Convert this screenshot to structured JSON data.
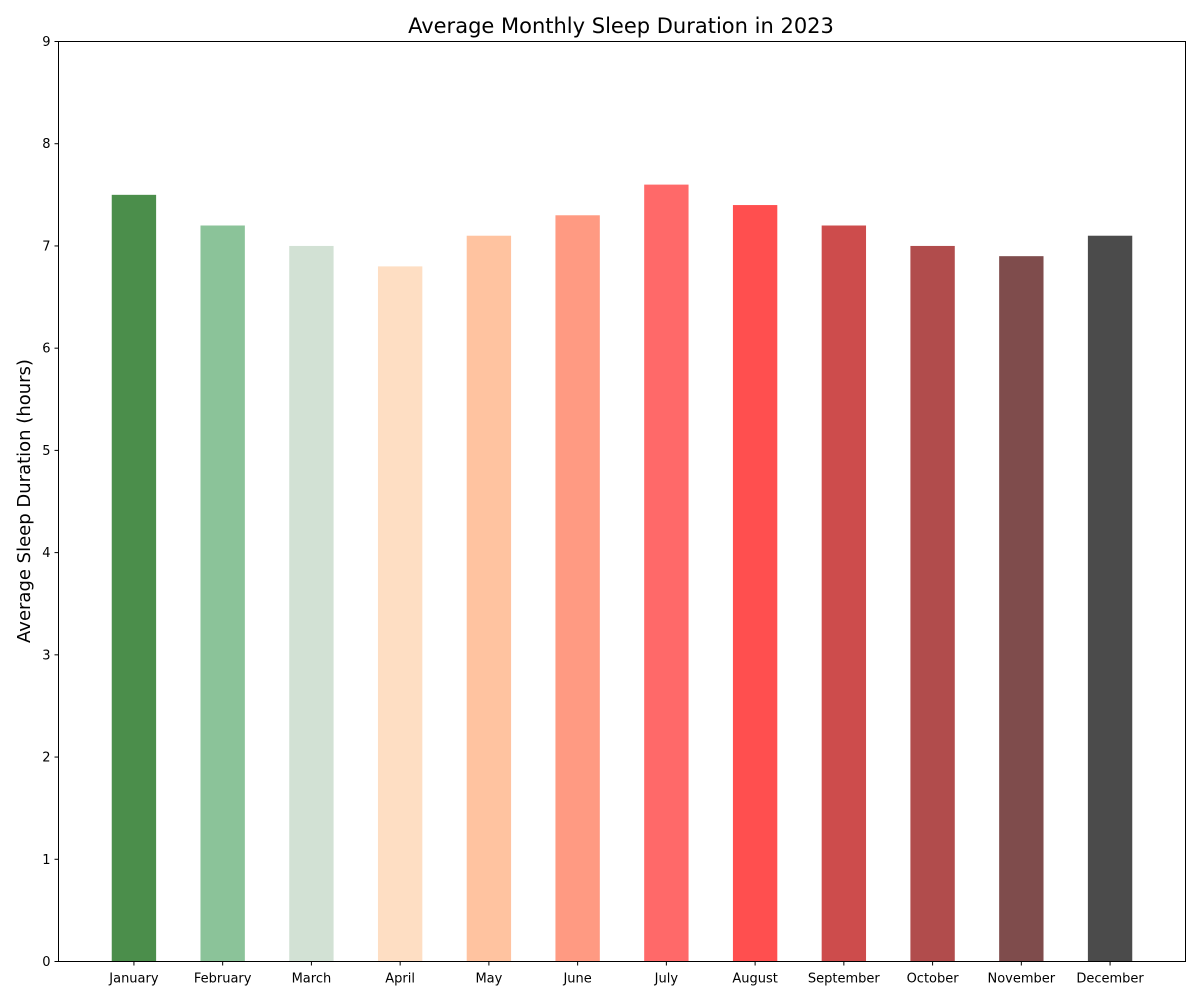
{
  "chart_data": {
    "type": "bar",
    "title": "Average Monthly Sleep Duration in 2023",
    "xlabel": "",
    "ylabel": "Average Sleep Duration (hours)",
    "ylim": [
      0,
      9
    ],
    "yticks": [
      0,
      1,
      2,
      3,
      4,
      5,
      6,
      7,
      8,
      9
    ],
    "grid": false,
    "categories": [
      "January",
      "February",
      "March",
      "April",
      "May",
      "June",
      "July",
      "August",
      "September",
      "October",
      "November",
      "December"
    ],
    "values": [
      7.5,
      7.2,
      7.0,
      6.8,
      7.1,
      7.3,
      7.6,
      7.4,
      7.2,
      7.0,
      6.9,
      7.1
    ],
    "colors": [
      "#4b8e4b",
      "#8bc399",
      "#d2e1d4",
      "#fedec3",
      "#ffc3a0",
      "#ff9a82",
      "#ff6969",
      "#ff4f4f",
      "#cd4c4c",
      "#b14c4c",
      "#7f4c4c",
      "#4b4b4b"
    ]
  }
}
